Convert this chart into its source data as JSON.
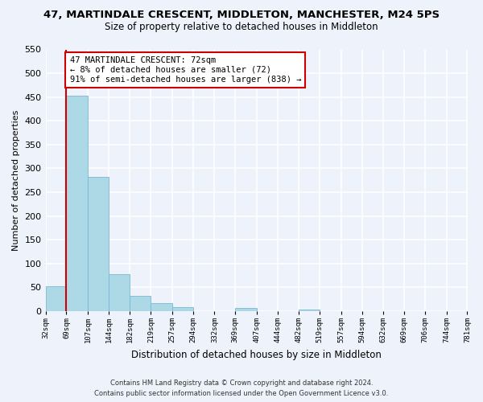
{
  "title_line1": "47, MARTINDALE CRESCENT, MIDDLETON, MANCHESTER, M24 5PS",
  "title_line2": "Size of property relative to detached houses in Middleton",
  "xlabel": "Distribution of detached houses by size in Middleton",
  "ylabel": "Number of detached properties",
  "bar_edges": [
    32,
    69,
    107,
    144,
    182,
    219,
    257,
    294,
    332,
    369,
    407,
    444,
    482,
    519,
    557,
    594,
    632,
    669,
    706,
    744,
    781
  ],
  "bar_heights": [
    53,
    453,
    283,
    78,
    32,
    17,
    9,
    0,
    0,
    6,
    0,
    0,
    4,
    0,
    0,
    0,
    0,
    0,
    0,
    0
  ],
  "bar_color": "#add8e6",
  "bar_edgecolor": "#7ab8d4",
  "property_line_x": 69,
  "ylim": [
    0,
    550
  ],
  "yticks": [
    0,
    50,
    100,
    150,
    200,
    250,
    300,
    350,
    400,
    450,
    500,
    550
  ],
  "annotation_title": "47 MARTINDALE CRESCENT: 72sqm",
  "annotation_line2": "← 8% of detached houses are smaller (72)",
  "annotation_line3": "91% of semi-detached houses are larger (838) →",
  "annotation_box_color": "#ffffff",
  "annotation_box_edgecolor": "#cc0000",
  "red_line_color": "#cc0000",
  "footer_line1": "Contains HM Land Registry data © Crown copyright and database right 2024.",
  "footer_line2": "Contains public sector information licensed under the Open Government Licence v3.0.",
  "background_color": "#eef2fb",
  "grid_color": "#ffffff",
  "tick_labels": [
    "32sqm",
    "69sqm",
    "107sqm",
    "144sqm",
    "182sqm",
    "219sqm",
    "257sqm",
    "294sqm",
    "332sqm",
    "369sqm",
    "407sqm",
    "444sqm",
    "482sqm",
    "519sqm",
    "557sqm",
    "594sqm",
    "632sqm",
    "669sqm",
    "706sqm",
    "744sqm",
    "781sqm"
  ]
}
